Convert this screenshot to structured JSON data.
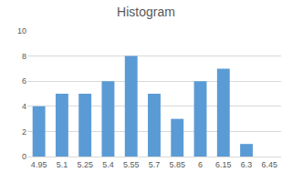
{
  "chart_data": {
    "type": "bar",
    "title": "Histogram",
    "categories": [
      "4.95",
      "5.1",
      "5.25",
      "5.4",
      "5.55",
      "5.7",
      "5.85",
      "6",
      "6.15",
      "6.3",
      "6.45"
    ],
    "values": [
      4,
      5,
      5,
      6,
      8,
      5,
      3,
      6,
      7,
      1,
      0
    ],
    "color": "#5b9bd5",
    "ylim": [
      0,
      10
    ],
    "yticks": [
      0,
      2,
      4,
      6,
      8,
      10
    ],
    "grid": true
  }
}
